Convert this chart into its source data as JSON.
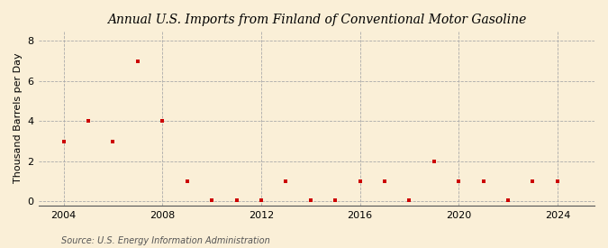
{
  "title": "Annual U.S. Imports from Finland of Conventional Motor Gasoline",
  "ylabel": "Thousand Barrels per Day",
  "source": "Source: U.S. Energy Information Administration",
  "background_color": "#faefd7",
  "marker_color": "#cc0000",
  "xlim": [
    2003.0,
    2025.5
  ],
  "ylim": [
    0,
    8.5
  ],
  "ylim_display": [
    0,
    8
  ],
  "yticks": [
    0,
    2,
    4,
    6,
    8
  ],
  "xticks": [
    2004,
    2008,
    2012,
    2016,
    2020,
    2024
  ],
  "data": {
    "2004": 3,
    "2005": 4,
    "2006": 3,
    "2007": 7,
    "2008": 4,
    "2009": 1,
    "2010": 0.05,
    "2011": 0.05,
    "2012": 0.05,
    "2013": 1,
    "2014": 0.05,
    "2015": 0.05,
    "2016": 1,
    "2017": 1,
    "2018": 0.05,
    "2019": 2,
    "2020": 1,
    "2021": 1,
    "2022": 0.05,
    "2023": 1,
    "2024": 1
  }
}
